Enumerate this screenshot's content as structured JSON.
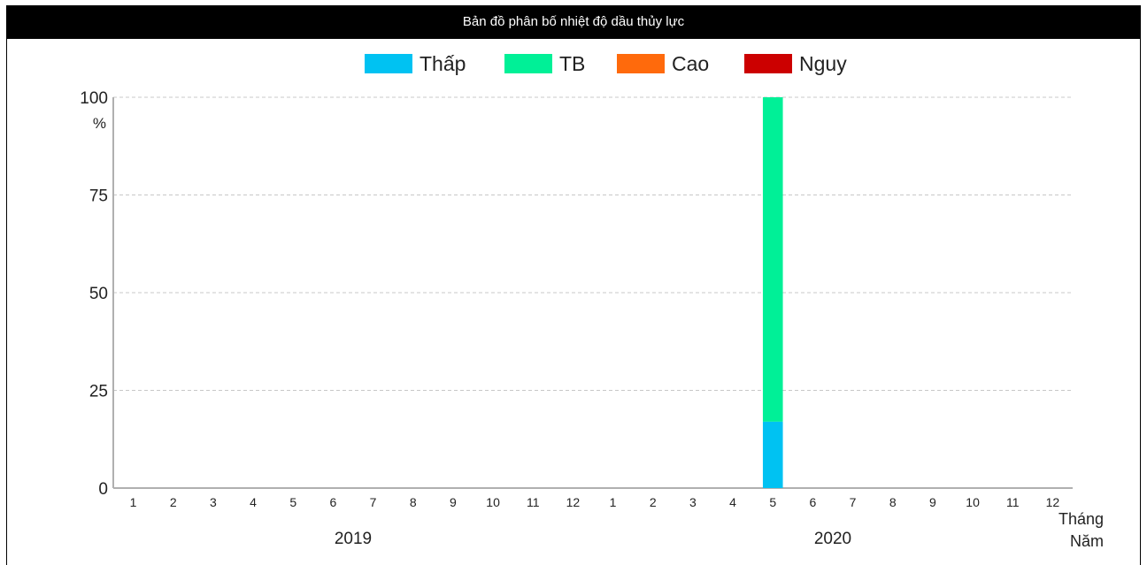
{
  "title": "Bản đồ phân bố nhiệt độ dầu thủy lực",
  "colors": {
    "thap": "#00c2f2",
    "tb": "#00f097",
    "cao": "#ff6a0c",
    "nguy": "#cc0000",
    "grid": "#c8c8c8",
    "title_bg": "#000000"
  },
  "chart_data": {
    "type": "bar",
    "stacked": true,
    "legend_position": "top-center",
    "grid": true,
    "ylabel": "%",
    "ylim": [
      0,
      100
    ],
    "yticks": [
      0,
      25,
      50,
      75,
      100
    ],
    "x_axis_label_top": "Tháng",
    "x_axis_label_bottom": "Năm",
    "years": [
      {
        "label": "2019",
        "months": [
          "1",
          "2",
          "3",
          "4",
          "5",
          "6",
          "7",
          "8",
          "9",
          "10",
          "11",
          "12"
        ]
      },
      {
        "label": "2020",
        "months": [
          "1",
          "2",
          "3",
          "4",
          "5",
          "6",
          "7",
          "8",
          "9",
          "10",
          "11",
          "12"
        ]
      }
    ],
    "categories": [
      "2019-1",
      "2019-2",
      "2019-3",
      "2019-4",
      "2019-5",
      "2019-6",
      "2019-7",
      "2019-8",
      "2019-9",
      "2019-10",
      "2019-11",
      "2019-12",
      "2020-1",
      "2020-2",
      "2020-3",
      "2020-4",
      "2020-5",
      "2020-6",
      "2020-7",
      "2020-8",
      "2020-9",
      "2020-10",
      "2020-11",
      "2020-12"
    ],
    "series": [
      {
        "name": "Thấp",
        "color": "#00c2f2",
        "values": [
          0,
          0,
          0,
          0,
          0,
          0,
          0,
          0,
          0,
          0,
          0,
          0,
          0,
          0,
          0,
          0,
          17,
          0,
          0,
          0,
          0,
          0,
          0,
          0
        ]
      },
      {
        "name": "TB",
        "color": "#00f097",
        "values": [
          0,
          0,
          0,
          0,
          0,
          0,
          0,
          0,
          0,
          0,
          0,
          0,
          0,
          0,
          0,
          0,
          83,
          0,
          0,
          0,
          0,
          0,
          0,
          0
        ]
      },
      {
        "name": "Cao",
        "color": "#ff6a0c",
        "values": [
          0,
          0,
          0,
          0,
          0,
          0,
          0,
          0,
          0,
          0,
          0,
          0,
          0,
          0,
          0,
          0,
          0,
          0,
          0,
          0,
          0,
          0,
          0,
          0
        ]
      },
      {
        "name": "Nguy",
        "color": "#cc0000",
        "values": [
          0,
          0,
          0,
          0,
          0,
          0,
          0,
          0,
          0,
          0,
          0,
          0,
          0,
          0,
          0,
          0,
          0,
          0,
          0,
          0,
          0,
          0,
          0,
          0
        ]
      }
    ]
  }
}
